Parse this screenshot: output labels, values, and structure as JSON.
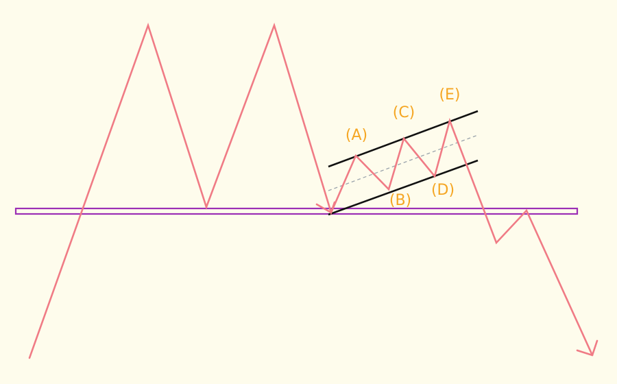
{
  "diagram": {
    "type": "double-top pattern with bearish flag breakdown",
    "colors": {
      "background": "#fefcec",
      "price_line": "#f07b85",
      "neckline": "#9b2fb5",
      "channel": "#111111",
      "channel_midline": "#9aa3ab",
      "wave_labels": "#f5a623"
    },
    "wave_labels": {
      "a": "(A)",
      "b": "(B)",
      "c": "(C)",
      "d": "(D)",
      "e": "(E)"
    }
  }
}
